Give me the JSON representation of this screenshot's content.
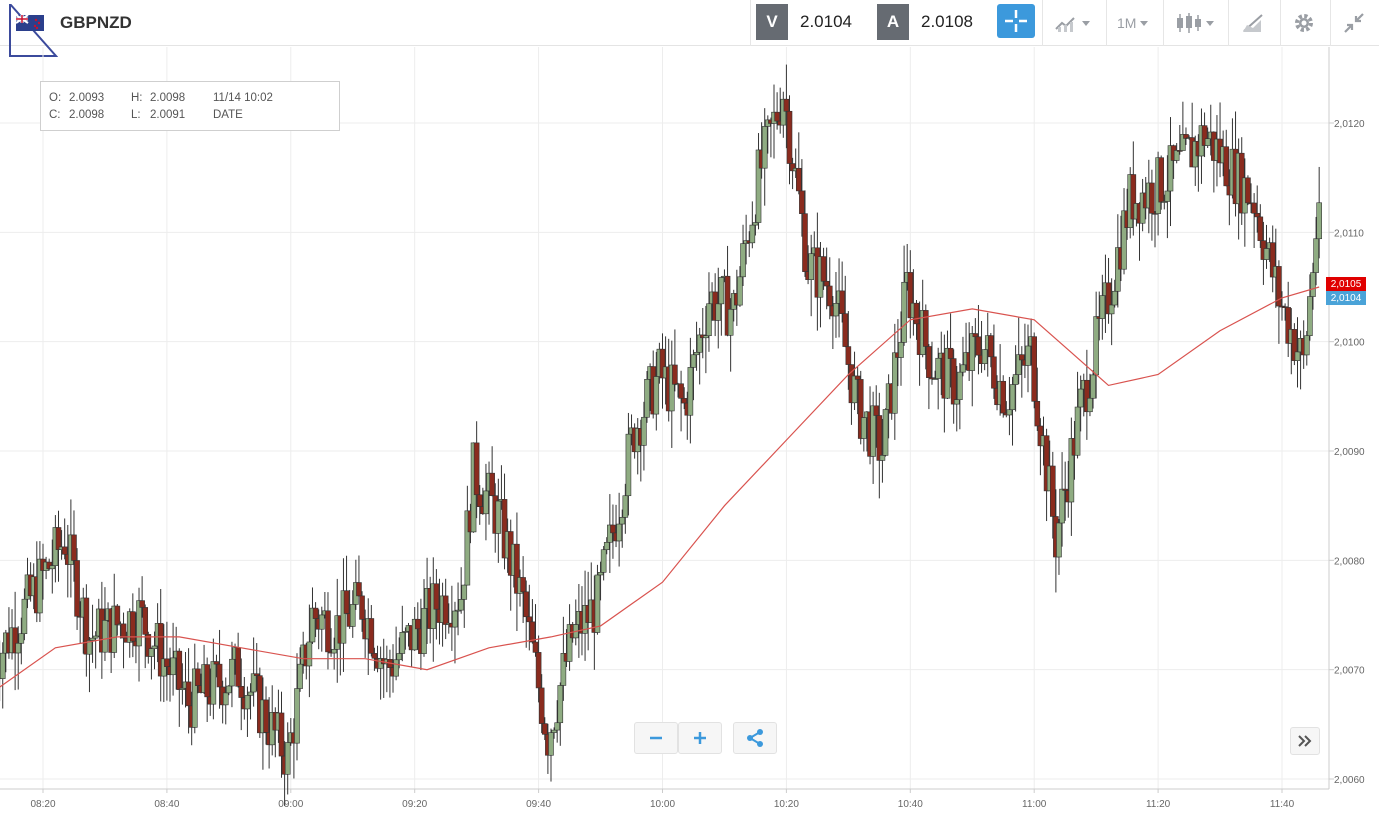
{
  "header": {
    "symbol": "GBPNZD",
    "sell_label": "V",
    "sell_price": "2.0104",
    "buy_label": "A",
    "buy_price": "2.0108",
    "timeframe": "1M",
    "icons": [
      "flag-gb-nz-icon",
      "crosshair-icon",
      "chart-type-icon",
      "candlestick-icon",
      "draw-icon",
      "gear-icon",
      "collapse-icon"
    ]
  },
  "ohlc": {
    "o_label": "O:",
    "o": "2.0093",
    "h_label": "H:",
    "h": "2.0098",
    "c_label": "C:",
    "c": "2.0098",
    "l_label": "L:",
    "l": "2.0091",
    "time": "11/14 10:02",
    "date_label": "DATE"
  },
  "price_labels": {
    "ask": "2,0105",
    "bid": "2,0104"
  },
  "chart_data": {
    "type": "candlestick",
    "x_ticks": [
      "08:20",
      "08:40",
      "09:00",
      "09:20",
      "09:40",
      "10:00",
      "10:20",
      "10:40",
      "11:00",
      "11:20",
      "11:40"
    ],
    "y_ticks": [
      "2,0060",
      "2,0070",
      "2,0080",
      "2,0090",
      "2,0100",
      "2,0110",
      "2,0120"
    ],
    "ylim": [
      2.0059,
      2.0125
    ],
    "up_color": "#8fac82",
    "down_color": "#8a2b1e",
    "ma_color": "#d9534f",
    "grid": true,
    "anchors": [
      [
        "08:12",
        2.007
      ],
      [
        "08:20",
        2.0078
      ],
      [
        "08:24",
        2.0082
      ],
      [
        "08:28",
        2.0073
      ],
      [
        "08:36",
        2.0075
      ],
      [
        "08:44",
        2.0067
      ],
      [
        "08:52",
        2.007
      ],
      [
        "08:56",
        2.0066
      ],
      [
        "09:00",
        2.0062
      ],
      [
        "09:04",
        2.0075
      ],
      [
        "09:08",
        2.0074
      ],
      [
        "09:12",
        2.0076
      ],
      [
        "09:16",
        2.007
      ],
      [
        "09:24",
        2.0076
      ],
      [
        "09:28",
        2.0077
      ],
      [
        "09:30",
        2.0088
      ],
      [
        "09:34",
        2.0084
      ],
      [
        "09:38",
        2.0076
      ],
      [
        "09:42",
        2.0064
      ],
      [
        "09:46",
        2.0073
      ],
      [
        "09:50",
        2.0076
      ],
      [
        "09:56",
        2.0092
      ],
      [
        "10:00",
        2.0097
      ],
      [
        "10:04",
        2.0094
      ],
      [
        "10:08",
        2.0104
      ],
      [
        "10:12",
        2.0103
      ],
      [
        "10:16",
        2.0115
      ],
      [
        "10:20",
        2.0123
      ],
      [
        "10:24",
        2.0107
      ],
      [
        "10:28",
        2.0105
      ],
      [
        "10:32",
        2.0094
      ],
      [
        "10:36",
        2.009
      ],
      [
        "10:40",
        2.0105
      ],
      [
        "10:44",
        2.0098
      ],
      [
        "10:48",
        2.0096
      ],
      [
        "10:52",
        2.01
      ],
      [
        "10:56",
        2.0095
      ],
      [
        "11:00",
        2.0099
      ],
      [
        "11:04",
        2.0082
      ],
      [
        "11:08",
        2.0094
      ],
      [
        "11:12",
        2.0103
      ],
      [
        "11:16",
        2.0113
      ],
      [
        "11:20",
        2.0114
      ],
      [
        "11:24",
        2.0116
      ],
      [
        "11:28",
        2.0119
      ],
      [
        "11:32",
        2.0116
      ],
      [
        "11:36",
        2.0113
      ],
      [
        "11:40",
        2.0104
      ],
      [
        "11:44",
        2.0098
      ],
      [
        "11:46",
        2.011
      ]
    ],
    "moving_average": [
      [
        "08:12",
        2.0068
      ],
      [
        "08:22",
        2.0072
      ],
      [
        "08:32",
        2.0073
      ],
      [
        "08:42",
        2.0073
      ],
      [
        "08:52",
        2.0072
      ],
      [
        "09:02",
        2.0071
      ],
      [
        "09:12",
        2.0071
      ],
      [
        "09:22",
        2.007
      ],
      [
        "09:32",
        2.0072
      ],
      [
        "09:42",
        2.0073
      ],
      [
        "09:50",
        2.0074
      ],
      [
        "10:00",
        2.0078
      ],
      [
        "10:10",
        2.0085
      ],
      [
        "10:20",
        2.0091
      ],
      [
        "10:30",
        2.0097
      ],
      [
        "10:40",
        2.0102
      ],
      [
        "10:50",
        2.0103
      ],
      [
        "11:00",
        2.0102
      ],
      [
        "11:06",
        2.0099
      ],
      [
        "11:12",
        2.0096
      ],
      [
        "11:20",
        2.0097
      ],
      [
        "11:30",
        2.0101
      ],
      [
        "11:40",
        2.0104
      ],
      [
        "11:46",
        2.0105
      ]
    ]
  }
}
